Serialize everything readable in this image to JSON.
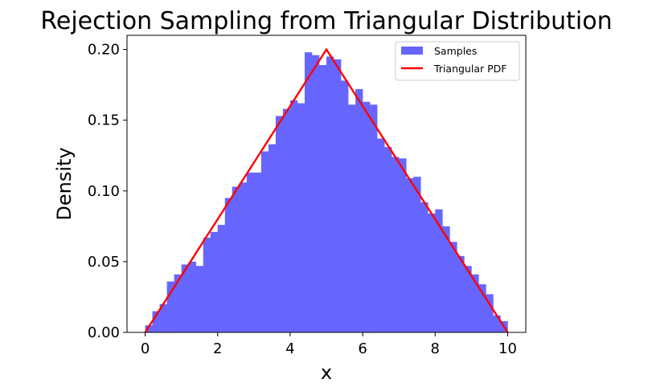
{
  "chart_data": {
    "type": "histogram",
    "title": "Rejection Sampling from Triangular Distribution",
    "xlabel": "x",
    "ylabel": "Density",
    "xlim": [
      -0.5,
      10.5
    ],
    "ylim": [
      0.0,
      0.21
    ],
    "xticks": [
      0,
      2,
      4,
      6,
      8,
      10
    ],
    "xtick_labels": [
      "0",
      "2",
      "4",
      "6",
      "8",
      "10"
    ],
    "yticks": [
      0.0,
      0.05,
      0.1,
      0.15,
      0.2
    ],
    "ytick_labels": [
      "0.00",
      "0.05",
      "0.10",
      "0.15",
      "0.20"
    ],
    "grid": false,
    "legend": {
      "placement": "top-right",
      "entries": [
        "Samples",
        "Triangular PDF"
      ]
    },
    "histogram": {
      "name": "Samples",
      "color": "#6666ff",
      "bin_start": 0,
      "bin_end": 10,
      "densities": [
        0.005,
        0.015,
        0.02,
        0.036,
        0.041,
        0.048,
        0.05,
        0.047,
        0.067,
        0.071,
        0.076,
        0.095,
        0.103,
        0.106,
        0.113,
        0.113,
        0.128,
        0.133,
        0.153,
        0.158,
        0.164,
        0.162,
        0.198,
        0.196,
        0.189,
        0.195,
        0.193,
        0.178,
        0.161,
        0.172,
        0.163,
        0.161,
        0.137,
        0.131,
        0.124,
        0.123,
        0.109,
        0.11,
        0.092,
        0.084,
        0.087,
        0.075,
        0.064,
        0.054,
        0.047,
        0.041,
        0.034,
        0.027,
        0.012,
        0.008
      ]
    },
    "pdf_line": {
      "name": "Triangular PDF",
      "color": "#ff0000",
      "x": [
        0,
        5,
        10
      ],
      "y": [
        0.0,
        0.2,
        0.0
      ]
    }
  }
}
